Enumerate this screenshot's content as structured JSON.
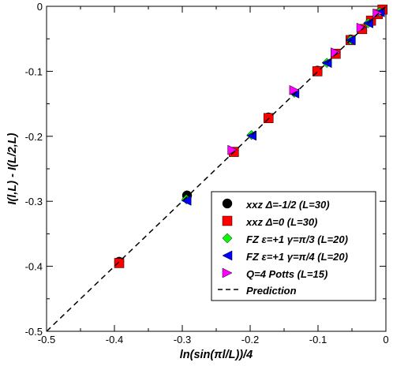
{
  "chart_data": {
    "type": "scatter",
    "title": "",
    "xlabel": "ln(sin(πl/L))/4",
    "ylabel": "I(l,L) - I(L/2,L)",
    "xlim": [
      -0.5,
      0
    ],
    "ylim": [
      -0.5,
      0
    ],
    "x_ticks": [
      -0.5,
      -0.4,
      -0.3,
      -0.2,
      -0.1,
      0
    ],
    "y_ticks": [
      -0.5,
      -0.4,
      -0.3,
      -0.2,
      -0.1,
      0
    ],
    "x_tick_labels": [
      "-0.5",
      "-0.4",
      "-0.3",
      "-0.2",
      "-0.1",
      "0"
    ],
    "y_tick_labels": [
      "-0.5",
      "-0.4",
      "-0.3",
      "-0.2",
      "-0.1",
      "0"
    ],
    "grid": false,
    "legend_position": "bottom-right",
    "series": [
      {
        "name": "xxz Δ=-1/2 (L=30)",
        "marker": "circle",
        "color": "#000000",
        "x": [
          -0.393,
          -0.293,
          -0.173,
          -0.101,
          -0.052,
          -0.022,
          -0.005
        ],
        "y": [
          -0.393,
          -0.291,
          -0.171,
          -0.099,
          -0.051,
          -0.022,
          -0.005
        ]
      },
      {
        "name": "xxz Δ=0 (L=30)",
        "marker": "square",
        "color": "#ff0000",
        "x": [
          -0.393,
          -0.224,
          -0.173,
          -0.101,
          -0.074,
          -0.052,
          -0.035,
          -0.022,
          -0.012,
          -0.005
        ],
        "y": [
          -0.395,
          -0.224,
          -0.172,
          -0.1,
          -0.073,
          -0.052,
          -0.035,
          -0.022,
          -0.012,
          -0.005
        ]
      },
      {
        "name": "FZ ε=+1 γ=π/3 (L=20)",
        "marker": "diamond",
        "color": "#00ff00",
        "x": [
          -0.294,
          -0.198,
          -0.135,
          -0.087,
          -0.052,
          -0.026,
          -0.009
        ],
        "y": [
          -0.297,
          -0.198,
          -0.133,
          -0.087,
          -0.052,
          -0.026,
          -0.009
        ]
      },
      {
        "name": "FZ ε=+1 γ=π/4 (L=20)",
        "marker": "triangle-left",
        "color": "#0000ff",
        "x": [
          -0.294,
          -0.198,
          -0.135,
          -0.087,
          -0.052,
          -0.026,
          -0.009
        ],
        "y": [
          -0.299,
          -0.199,
          -0.134,
          -0.087,
          -0.052,
          -0.026,
          -0.009
        ]
      },
      {
        "name": "Q=4 Potts (L=15)",
        "marker": "triangle-right",
        "color": "#ff00ff",
        "x": [
          -0.226,
          -0.135,
          -0.074,
          -0.036,
          -0.012
        ],
        "y": [
          -0.221,
          -0.129,
          -0.071,
          -0.033,
          -0.011
        ]
      },
      {
        "name": "Prediction",
        "marker": "dashed-line",
        "color": "#000000",
        "x": [
          -0.5,
          0
        ],
        "y": [
          -0.5,
          0
        ]
      }
    ]
  }
}
